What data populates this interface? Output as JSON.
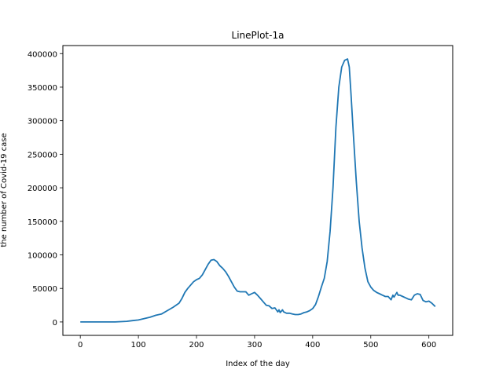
{
  "chart_data": {
    "type": "line",
    "title": "LinePlot-1a",
    "xlabel": "Index of the day",
    "ylabel": "the number of Covid-19 case",
    "xlim": [
      -30,
      641
    ],
    "ylim": [
      -20000,
      412000
    ],
    "xticks": [
      0,
      100,
      200,
      300,
      400,
      500,
      600
    ],
    "yticks": [
      0,
      50000,
      100000,
      150000,
      200000,
      250000,
      300000,
      350000,
      400000
    ],
    "grid": false,
    "line_color": "#1f77b4",
    "series": [
      {
        "x": [
          0,
          20,
          40,
          60,
          70,
          80,
          90,
          100,
          110,
          120,
          130,
          140,
          150,
          160,
          170,
          175,
          180,
          185,
          190,
          195,
          200,
          205,
          210,
          215,
          220,
          225,
          230,
          235,
          240,
          245,
          250,
          255,
          260,
          265,
          270,
          275,
          280,
          285,
          290,
          295,
          300,
          305,
          310,
          315,
          320,
          325,
          330,
          335,
          340,
          342,
          344,
          348,
          350,
          355,
          360,
          365,
          370,
          375,
          380,
          385,
          390,
          395,
          400,
          405,
          410,
          415,
          420,
          425,
          430,
          435,
          440,
          445,
          450,
          455,
          460,
          463,
          466,
          470,
          475,
          480,
          485,
          490,
          495,
          500,
          505,
          510,
          515,
          520,
          525,
          530,
          535,
          538,
          540,
          545,
          547,
          550,
          555,
          560,
          565,
          570,
          575,
          580,
          585,
          590,
          595,
          600,
          605,
          611
        ],
        "y": [
          0,
          0,
          0,
          0,
          500,
          1000,
          2000,
          3000,
          5000,
          7000,
          10000,
          12000,
          17000,
          22000,
          28000,
          35000,
          44000,
          50000,
          55000,
          60000,
          63000,
          65000,
          70000,
          78000,
          86000,
          92000,
          93000,
          90000,
          84000,
          80000,
          75000,
          68000,
          60000,
          52000,
          46000,
          45000,
          45000,
          45000,
          40000,
          42000,
          44000,
          40000,
          35000,
          30000,
          25000,
          24000,
          20000,
          21000,
          15000,
          18000,
          14000,
          18000,
          15000,
          13000,
          13000,
          12000,
          11000,
          11000,
          12000,
          14000,
          15000,
          17000,
          20000,
          26000,
          38000,
          52000,
          65000,
          90000,
          135000,
          200000,
          290000,
          350000,
          380000,
          390000,
          392000,
          380000,
          340000,
          280000,
          210000,
          150000,
          110000,
          80000,
          60000,
          52000,
          47000,
          44000,
          42000,
          40000,
          38000,
          38000,
          33000,
          40000,
          37000,
          44000,
          40000,
          40000,
          38000,
          36000,
          34000,
          33000,
          40000,
          42000,
          41000,
          32000,
          30000,
          31000,
          28000,
          23000
        ]
      }
    ]
  }
}
